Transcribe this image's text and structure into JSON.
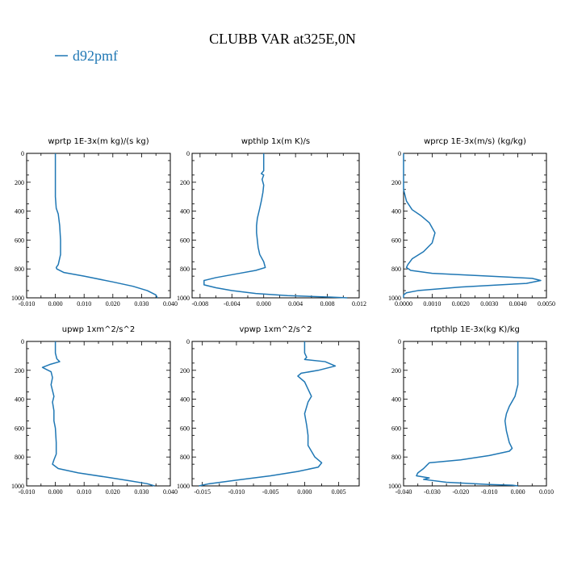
{
  "figure": {
    "title": "CLUBB VAR at325E,0N",
    "legend": [
      "d92pmf"
    ],
    "series_color": "#1f77b4"
  },
  "chart_data": [
    {
      "type": "line",
      "title": "wprtp   1E-3x(m kg)/(s kg)",
      "series_name": "d92pmf",
      "xlim": [
        -0.01,
        0.04
      ],
      "ylim": [
        1000,
        0
      ],
      "xticks": [
        -0.01,
        0.0,
        0.01,
        0.02,
        0.03,
        0.04
      ],
      "xtick_labels": [
        "-0.010",
        "0.000",
        "0.010",
        "0.020",
        "0.030",
        "0.040"
      ],
      "yticks": [
        0,
        200,
        400,
        600,
        800,
        1000
      ],
      "ytick_labels": [
        "0",
        "200",
        "400",
        "600",
        "800",
        "1000"
      ],
      "points": [
        [
          0.0,
          0
        ],
        [
          0.0,
          100
        ],
        [
          0.0,
          200
        ],
        [
          0.0,
          300
        ],
        [
          0.0003,
          380
        ],
        [
          0.001,
          420
        ],
        [
          0.0015,
          500
        ],
        [
          0.0018,
          600
        ],
        [
          0.0018,
          700
        ],
        [
          0.001,
          770
        ],
        [
          0.0003,
          790
        ],
        [
          0.0005,
          800
        ],
        [
          0.003,
          825
        ],
        [
          0.01,
          850
        ],
        [
          0.02,
          890
        ],
        [
          0.027,
          920
        ],
        [
          0.032,
          950
        ],
        [
          0.035,
          980
        ],
        [
          0.0355,
          1000
        ]
      ]
    },
    {
      "type": "line",
      "title": "wpthlp   1x(m K)/s",
      "series_name": "d92pmf",
      "xlim": [
        -0.009,
        0.012
      ],
      "ylim": [
        1000,
        0
      ],
      "xticks": [
        -0.008,
        -0.004,
        0.0,
        0.004,
        0.008,
        0.012
      ],
      "xtick_labels": [
        "-0.008",
        "-0.004",
        "0.000",
        "0.004",
        "0.008",
        "0.012"
      ],
      "yticks": [
        0,
        200,
        400,
        600,
        800,
        1000
      ],
      "ytick_labels": [
        "0",
        "200",
        "400",
        "600",
        "800",
        "1000"
      ],
      "points": [
        [
          0.0,
          0
        ],
        [
          0.0,
          120
        ],
        [
          -0.0003,
          140
        ],
        [
          0.0,
          150
        ],
        [
          -0.0002,
          180
        ],
        [
          0.0,
          220
        ],
        [
          -0.0001,
          270
        ],
        [
          -0.0003,
          330
        ],
        [
          -0.0005,
          380
        ],
        [
          -0.0008,
          450
        ],
        [
          -0.0009,
          500
        ],
        [
          -0.0009,
          550
        ],
        [
          -0.0008,
          600
        ],
        [
          -0.0007,
          650
        ],
        [
          -0.0005,
          700
        ],
        [
          0.0,
          750
        ],
        [
          0.0002,
          790
        ],
        [
          -0.001,
          810
        ],
        [
          -0.003,
          830
        ],
        [
          -0.006,
          860
        ],
        [
          -0.0075,
          880
        ],
        [
          -0.0075,
          910
        ],
        [
          -0.006,
          930
        ],
        [
          -0.004,
          950
        ],
        [
          -0.001,
          970
        ],
        [
          0.003,
          985
        ],
        [
          0.0085,
          995
        ],
        [
          0.0105,
          1000
        ]
      ]
    },
    {
      "type": "line",
      "title": "wprcp   1E-3x(m/s) (kg/kg)",
      "series_name": "d92pmf",
      "xlim": [
        0.0,
        0.005
      ],
      "ylim": [
        1000,
        0
      ],
      "xticks": [
        0.0,
        0.001,
        0.002,
        0.003,
        0.004,
        0.005
      ],
      "xtick_labels": [
        "0.0000",
        "0.0010",
        "0.0020",
        "0.0030",
        "0.0040",
        "0.0050"
      ],
      "yticks": [
        0,
        200,
        400,
        600,
        800,
        1000
      ],
      "ytick_labels": [
        "0",
        "200",
        "400",
        "600",
        "800",
        "1000"
      ],
      "points": [
        [
          0.0,
          0
        ],
        [
          0.0,
          150
        ],
        [
          0.0,
          250
        ],
        [
          0.0001,
          330
        ],
        [
          0.0003,
          390
        ],
        [
          0.0006,
          430
        ],
        [
          0.0009,
          480
        ],
        [
          0.0011,
          550
        ],
        [
          0.001,
          620
        ],
        [
          0.0007,
          680
        ],
        [
          0.0003,
          730
        ],
        [
          0.00015,
          770
        ],
        [
          0.0001,
          790
        ],
        [
          0.00025,
          810
        ],
        [
          0.001,
          830
        ],
        [
          0.003,
          850
        ],
        [
          0.0045,
          865
        ],
        [
          0.0048,
          880
        ],
        [
          0.0043,
          900
        ],
        [
          0.002,
          925
        ],
        [
          0.0005,
          950
        ],
        [
          0.0001,
          965
        ],
        [
          0.0,
          980
        ],
        [
          0.0,
          1000
        ]
      ]
    },
    {
      "type": "line",
      "title": "upwp   1xm^2/s^2",
      "series_name": "d92pmf",
      "xlim": [
        -0.01,
        0.04
      ],
      "ylim": [
        1000,
        0
      ],
      "xticks": [
        -0.01,
        0.0,
        0.01,
        0.02,
        0.03,
        0.04
      ],
      "xtick_labels": [
        "-0.010",
        "0.000",
        "0.010",
        "0.020",
        "0.030",
        "0.040"
      ],
      "yticks": [
        0,
        200,
        400,
        600,
        800,
        1000
      ],
      "ytick_labels": [
        "0",
        "200",
        "400",
        "600",
        "800",
        "1000"
      ],
      "points": [
        [
          0.0,
          0
        ],
        [
          0.0,
          80
        ],
        [
          0.0005,
          120
        ],
        [
          0.0015,
          140
        ],
        [
          -0.002,
          160
        ],
        [
          -0.0045,
          180
        ],
        [
          -0.003,
          195
        ],
        [
          -0.0015,
          210
        ],
        [
          -0.001,
          250
        ],
        [
          -0.0015,
          300
        ],
        [
          -0.0005,
          380
        ],
        [
          -0.001,
          420
        ],
        [
          -0.0005,
          480
        ],
        [
          -0.0005,
          550
        ],
        [
          0.0,
          600
        ],
        [
          0.0003,
          700
        ],
        [
          0.0003,
          780
        ],
        [
          -0.0005,
          820
        ],
        [
          -0.001,
          850
        ],
        [
          0.001,
          880
        ],
        [
          0.008,
          910
        ],
        [
          0.018,
          940
        ],
        [
          0.026,
          965
        ],
        [
          0.032,
          985
        ],
        [
          0.0345,
          1000
        ]
      ]
    },
    {
      "type": "line",
      "title": "vpwp   1xm^2/s^2",
      "series_name": "d92pmf",
      "xlim": [
        -0.0165,
        0.008
      ],
      "ylim": [
        1000,
        0
      ],
      "xticks": [
        -0.015,
        -0.01,
        -0.005,
        0.0,
        0.005
      ],
      "xtick_labels": [
        "-0.015",
        "-0.010",
        "-0.005",
        "0.000",
        "0.005"
      ],
      "yticks": [
        0,
        200,
        400,
        600,
        800,
        1000
      ],
      "ytick_labels": [
        "0",
        "200",
        "400",
        "600",
        "800",
        "1000"
      ],
      "points": [
        [
          0.0,
          0
        ],
        [
          0.0,
          80
        ],
        [
          0.0003,
          110
        ],
        [
          0.0,
          125
        ],
        [
          0.003,
          140
        ],
        [
          0.0045,
          170
        ],
        [
          0.002,
          200
        ],
        [
          -0.0005,
          220
        ],
        [
          -0.001,
          240
        ],
        [
          0.0,
          280
        ],
        [
          0.0005,
          330
        ],
        [
          0.001,
          380
        ],
        [
          0.0005,
          420
        ],
        [
          0.0,
          500
        ],
        [
          0.0003,
          580
        ],
        [
          0.0005,
          650
        ],
        [
          0.0005,
          720
        ],
        [
          0.0015,
          800
        ],
        [
          0.0025,
          840
        ],
        [
          0.002,
          870
        ],
        [
          -0.001,
          900
        ],
        [
          -0.005,
          930
        ],
        [
          -0.01,
          960
        ],
        [
          -0.014,
          985
        ],
        [
          -0.0155,
          1000
        ]
      ]
    },
    {
      "type": "line",
      "title": "rtpthlp   1E-3x(kg K)/kg",
      "series_name": "d92pmf",
      "xlim": [
        -0.04,
        0.01
      ],
      "ylim": [
        1000,
        0
      ],
      "xticks": [
        -0.04,
        -0.03,
        -0.02,
        -0.01,
        0.0,
        0.01
      ],
      "xtick_labels": [
        "-0.040",
        "-0.030",
        "-0.020",
        "-0.010",
        "0.000",
        "0.010"
      ],
      "yticks": [
        0,
        200,
        400,
        600,
        800,
        1000
      ],
      "ytick_labels": [
        "0",
        "200",
        "400",
        "600",
        "800",
        "1000"
      ],
      "points": [
        [
          0.0,
          0
        ],
        [
          0.0,
          100
        ],
        [
          0.0,
          200
        ],
        [
          0.0,
          300
        ],
        [
          -0.001,
          380
        ],
        [
          -0.003,
          450
        ],
        [
          -0.004,
          500
        ],
        [
          -0.0045,
          550
        ],
        [
          -0.004,
          620
        ],
        [
          -0.003,
          700
        ],
        [
          -0.002,
          740
        ],
        [
          -0.003,
          760
        ],
        [
          -0.01,
          790
        ],
        [
          -0.02,
          820
        ],
        [
          -0.031,
          840
        ],
        [
          -0.032,
          860
        ],
        [
          -0.033,
          880
        ],
        [
          -0.035,
          910
        ],
        [
          -0.0355,
          930
        ],
        [
          -0.031,
          945
        ],
        [
          -0.033,
          955
        ],
        [
          -0.025,
          975
        ],
        [
          -0.01,
          990
        ],
        [
          -0.002,
          995
        ],
        [
          0.0,
          1000
        ]
      ]
    }
  ]
}
